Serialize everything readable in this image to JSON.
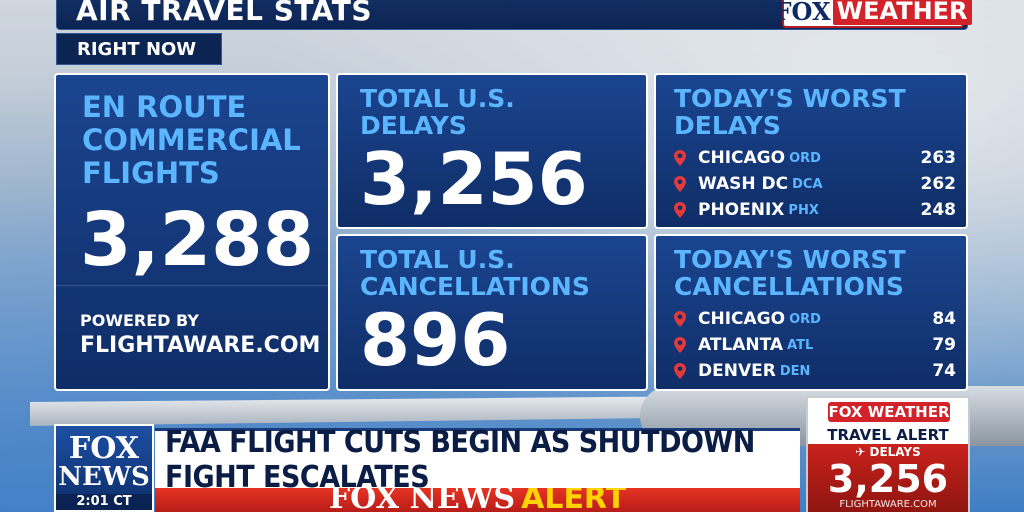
{
  "header": {
    "title": "AIR TRAVEL STATS",
    "logo_fox": "FOX",
    "logo_weather": "WEATHER",
    "tab": "RIGHT NOW"
  },
  "en_route": {
    "label": "EN ROUTE COMMERCIAL FLIGHTS",
    "value": "3,288",
    "powered_by": "POWERED BY",
    "source": "FLIGHTAWARE.COM"
  },
  "delays": {
    "label": "TOTAL U.S. DELAYS",
    "value": "3,256"
  },
  "cancellations": {
    "label": "TOTAL U.S. CANCELLATIONS",
    "value": "896"
  },
  "worst_delays": {
    "label": "TODAY'S WORST DELAYS",
    "rows": [
      {
        "city": "CHICAGO",
        "code": "ORD",
        "count": "263"
      },
      {
        "city": "WASH DC",
        "code": "DCA",
        "count": "262"
      },
      {
        "city": "PHOENIX",
        "code": "PHX",
        "count": "248"
      }
    ]
  },
  "worst_cancellations": {
    "label": "TODAY'S WORST CANCELLATIONS",
    "rows": [
      {
        "city": "CHICAGO",
        "code": "ORD",
        "count": "84"
      },
      {
        "city": "ATLANTA",
        "code": "ATL",
        "count": "79"
      },
      {
        "city": "DENVER",
        "code": "DEN",
        "count": "74"
      }
    ]
  },
  "lower_third": {
    "logo_line1": "FOX",
    "logo_line2": "NEWS",
    "time": "2:01 CT",
    "headline": "FAA FLIGHT CUTS BEGIN AS SHUTDOWN FIGHT ESCALATES",
    "alert_brand": "FOX NEWS",
    "alert_word": "ALERT"
  },
  "travel_card": {
    "logo": "FOX WEATHER",
    "title": "TRAVEL ALERT",
    "sub": "DELAYS",
    "value": "3,256",
    "site": "FLIGHTAWARE.COM"
  },
  "colors": {
    "panel_navy": "#0f2d66",
    "label_blue": "#5bb6ff",
    "alert_red": "#d2232a",
    "alert_yellow": "#ffd400"
  },
  "icons": [
    "location-pin-icon",
    "plane-icon"
  ]
}
